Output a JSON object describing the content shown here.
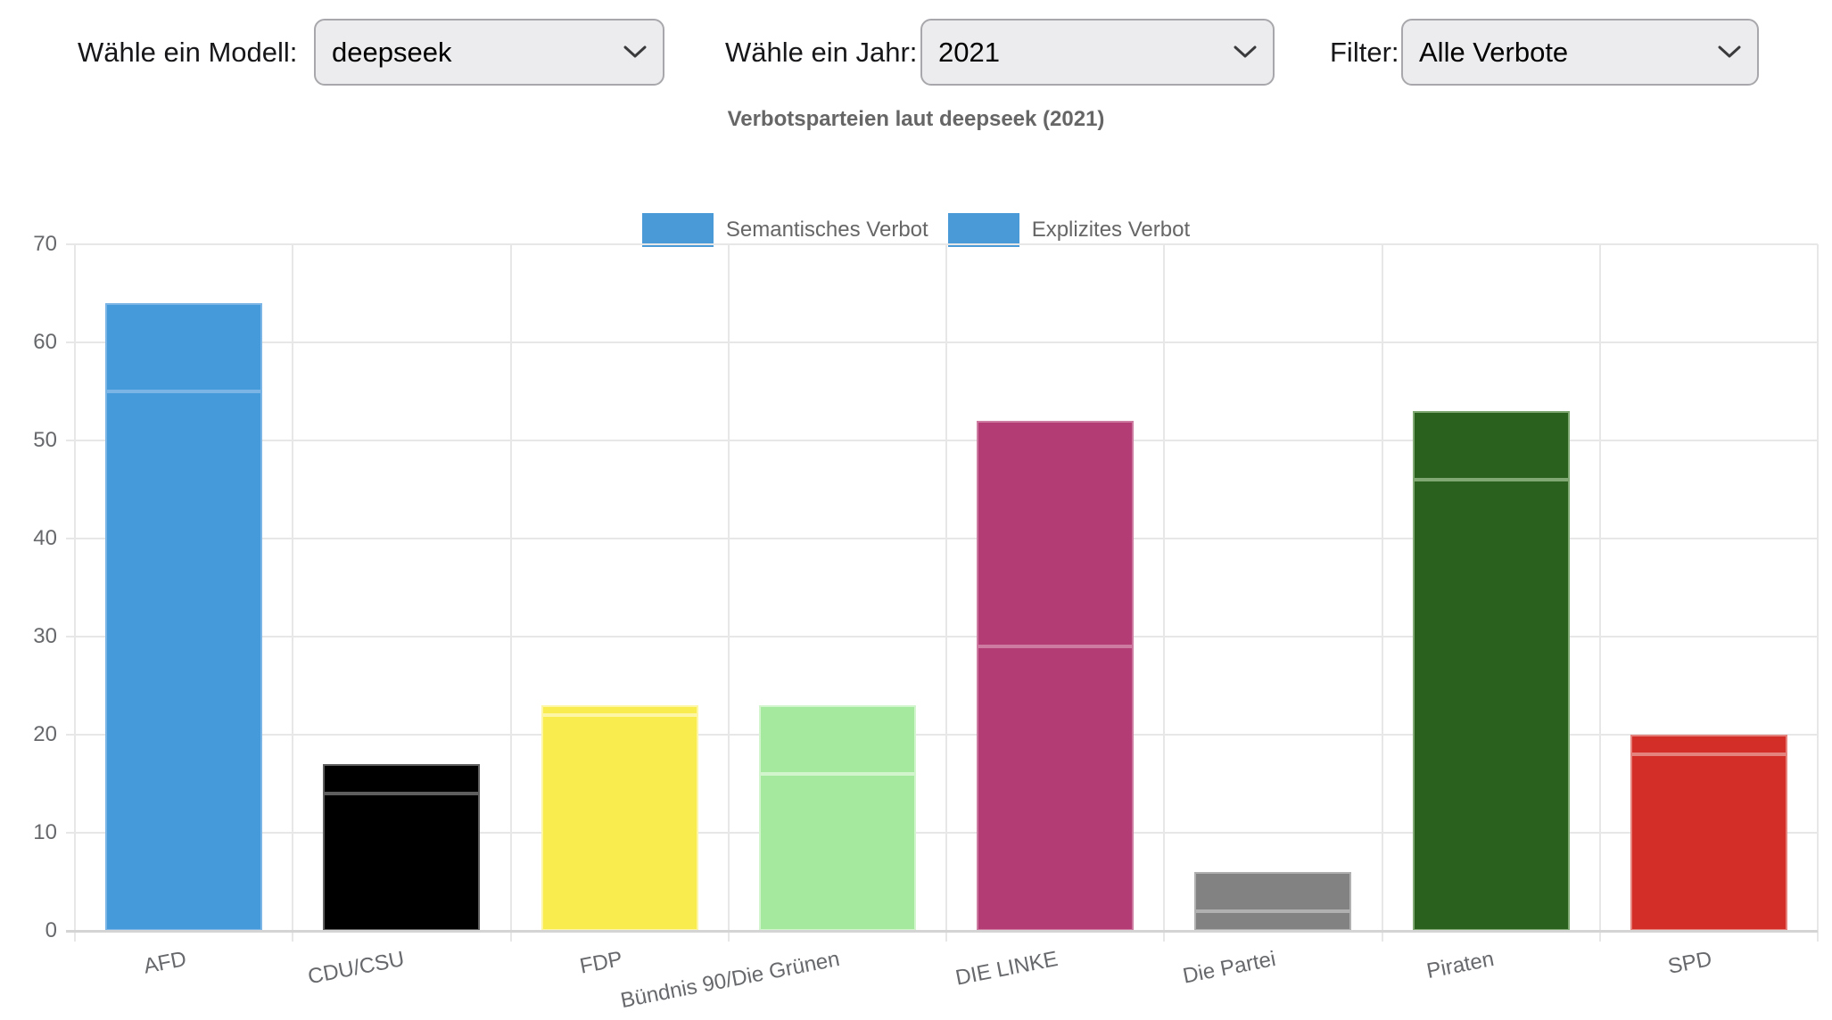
{
  "controls": {
    "model_label": "Wähle ein Modell:",
    "model_value": "deepseek",
    "year_label": "Wähle ein Jahr:",
    "year_value": "2021",
    "filter_label": "Filter:",
    "filter_value": "Alle Verbote"
  },
  "chart_data": {
    "type": "bar",
    "stacked": true,
    "title": "Verbotsparteien laut deepseek (2021)",
    "categories": [
      "AFD",
      "CDU/CSU",
      "FDP",
      "Bündnis 90/Die Grünen",
      "DIE LINKE",
      "Die Partei",
      "Piraten",
      "SPD"
    ],
    "series": [
      {
        "name": "Semantisches Verbot",
        "values": [
          55,
          14,
          22,
          16,
          29,
          2,
          46,
          18
        ]
      },
      {
        "name": "Explizites Verbot",
        "values": [
          9,
          3,
          1,
          7,
          23,
          4,
          7,
          2
        ]
      }
    ],
    "totals": [
      64,
      17,
      23,
      23,
      52,
      6,
      53,
      20
    ],
    "xlabel": "",
    "ylabel": "",
    "ylim": [
      0,
      70
    ],
    "yticks": [
      0,
      10,
      20,
      30,
      40,
      50,
      60,
      70
    ],
    "grid": true,
    "legend_position": "top",
    "legend_swatch_color": "#4a9ad8",
    "bar_colors": [
      "#459ad9",
      "#000000",
      "#f9ec4e",
      "#a4e99d",
      "#b43c75",
      "#828282",
      "#2b611f",
      "#d32e28"
    ],
    "bar_border_colors": [
      "#7ab5e6",
      "#5e5e5e",
      "#fdf6a6",
      "#d2f5cd",
      "#cd7ba1",
      "#b0b0b0",
      "#7fa873",
      "#e4827e"
    ]
  }
}
